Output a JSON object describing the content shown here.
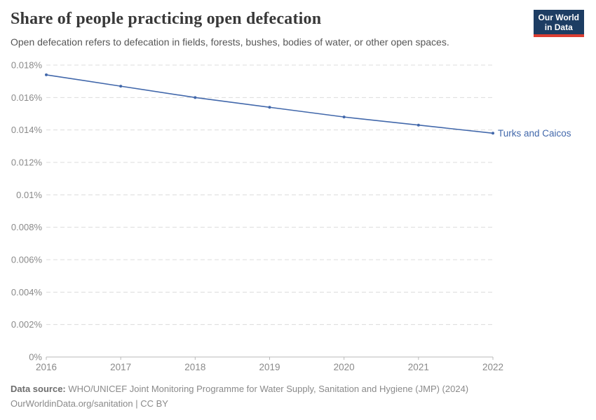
{
  "header": {
    "title": "Share of people practicing open defecation",
    "subtitle": "Open defecation refers to defecation in fields, forests, bushes, bodies of water, or other open spaces."
  },
  "logo": {
    "line1": "Our World",
    "line2": "in Data",
    "bg_color": "#1d3d63",
    "accent_color": "#dc3e32"
  },
  "chart_data": {
    "type": "line",
    "title": "Share of people practicing open defecation",
    "x": [
      2016,
      2017,
      2018,
      2019,
      2020,
      2021,
      2022
    ],
    "xtick_labels": [
      "2016",
      "2017",
      "2018",
      "2019",
      "2020",
      "2021",
      "2022"
    ],
    "series": [
      {
        "name": "Turks and Caicos",
        "values": [
          0.0174,
          0.0167,
          0.016,
          0.0154,
          0.0148,
          0.0143,
          0.0138
        ],
        "color": "#4268ab"
      }
    ],
    "ylim": [
      0,
      0.018
    ],
    "yticks": [
      0,
      0.002,
      0.004,
      0.006,
      0.008,
      0.01,
      0.012,
      0.014,
      0.016,
      0.018
    ],
    "ytick_labels": [
      "0%",
      "0.002%",
      "0.004%",
      "0.006%",
      "0.008%",
      "0.01%",
      "0.012%",
      "0.014%",
      "0.016%",
      "0.018%"
    ],
    "unit": "%",
    "grid": "horizontal-dashed",
    "legend_position": "end-of-line-label",
    "colors": {
      "line": "#4268ab",
      "gridline": "#dcdcdc",
      "axis": "#b8b8b8",
      "tick_label": "#8a8a8a"
    }
  },
  "footer": {
    "source_label": "Data source:",
    "source_text": "WHO/UNICEF Joint Monitoring Programme for Water Supply, Sanitation and Hygiene (JMP) (2024)",
    "license_line": "OurWorldinData.org/sanitation | CC BY"
  }
}
